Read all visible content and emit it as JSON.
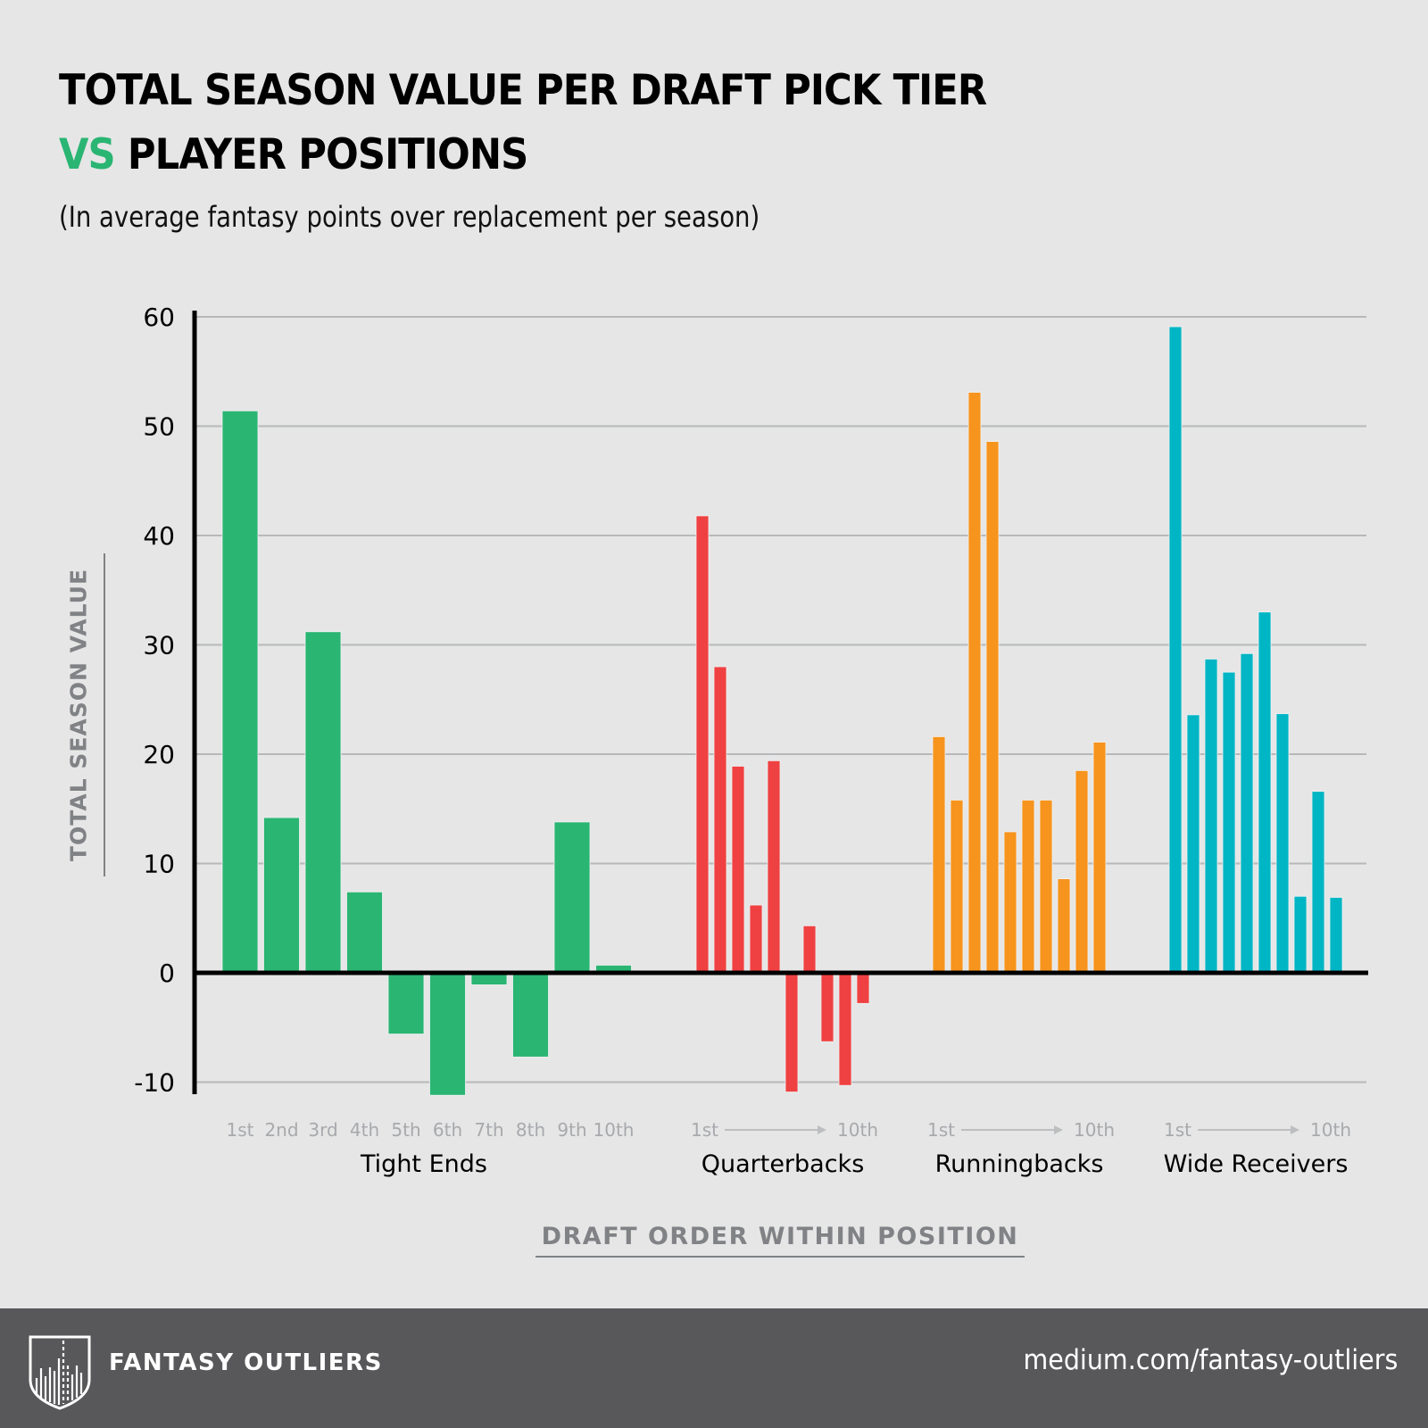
{
  "header": {
    "title_line1": "TOTAL SEASON VALUE PER DRAFT PICK TIER",
    "title_vs": "VS",
    "title_line2": " PLAYER POSITIONS",
    "subtitle": "(In average fantasy points over replacement per season)"
  },
  "colors": {
    "background": "#e6e6e6",
    "vs_accent": "#2ab573",
    "tight_ends": "#2ab573",
    "quarterbacks": "#ef4141",
    "runningbacks": "#f7941d",
    "wide_receivers": "#00b5c4",
    "axis": "#000000",
    "grid": "#b7b8ba",
    "muted_text": "#a7a9ac",
    "axis_title": "#808285",
    "footer": "#58585a"
  },
  "chart_data": {
    "type": "bar",
    "title": "TOTAL SEASON VALUE PER DRAFT PICK TIER VS PLAYER POSITIONS",
    "subtitle": "(In average fantasy points over replacement per season)",
    "xlabel": "DRAFT ORDER WITHIN POSITION",
    "ylabel": "TOTAL SEASON VALUE",
    "ylim": [
      -10,
      60
    ],
    "yticks": [
      60,
      50,
      40,
      30,
      20,
      10,
      0,
      -10
    ],
    "grid": true,
    "legend": "none",
    "categories": [
      "1st",
      "2nd",
      "3rd",
      "4th",
      "5th",
      "6th",
      "7th",
      "8th",
      "9th",
      "10th"
    ],
    "series": [
      {
        "name": "Tight Ends",
        "color": "#2ab573",
        "tick_labels": [
          "1st",
          "2nd",
          "3rd",
          "4th",
          "5th",
          "6th",
          "7th",
          "8th",
          "9th",
          "10th"
        ],
        "values": [
          51.4,
          14.2,
          31.2,
          7.4,
          -5.6,
          -11.2,
          -1.1,
          -7.7,
          13.8,
          0.7
        ]
      },
      {
        "name": "Quarterbacks",
        "color": "#ef4141",
        "range_start": "1st",
        "range_end": "10th",
        "values": [
          41.8,
          28.0,
          18.9,
          6.2,
          19.4,
          -10.9,
          4.3,
          -6.3,
          -10.3,
          -2.8
        ]
      },
      {
        "name": "Runningbacks",
        "color": "#f7941d",
        "range_start": "1st",
        "range_end": "10th",
        "values": [
          21.6,
          15.8,
          53.1,
          48.6,
          12.9,
          15.8,
          15.8,
          8.6,
          18.5,
          21.1
        ]
      },
      {
        "name": "Wide Receivers",
        "color": "#00b5c4",
        "range_start": "1st",
        "range_end": "10th",
        "values": [
          59.1,
          23.6,
          28.7,
          27.5,
          29.2,
          33.0,
          23.7,
          7.0,
          16.6,
          6.9
        ]
      }
    ]
  },
  "footer": {
    "brand": "FANTASY OUTLIERS",
    "logo_icon": "shield-bars-logo-icon",
    "url": "medium.com/fantasy-outliers"
  }
}
